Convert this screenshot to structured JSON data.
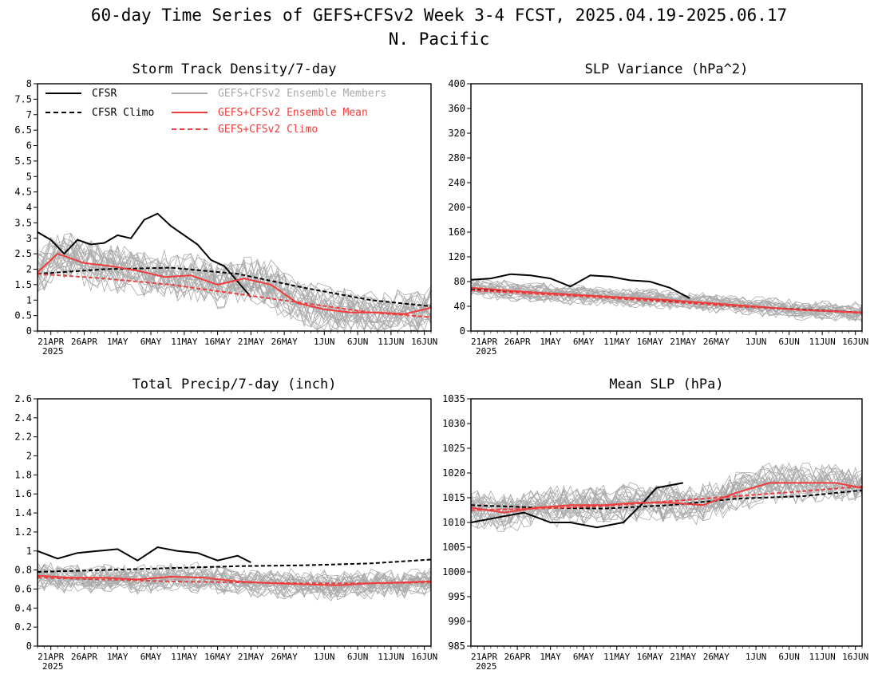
{
  "figure": {
    "title_line1": "60-day Time Series of GEFS+CFSv2 Week 3-4 FCST, 2025.04.19-2025.06.17",
    "title_line2": "N. Pacific"
  },
  "x_axis": {
    "tick_labels": [
      "21APR",
      "26APR",
      "1MAY",
      "6MAY",
      "11MAY",
      "16MAY",
      "21MAY",
      "26MAY",
      "1JUN",
      "6JUN",
      "11JUN",
      "16JUN"
    ],
    "tick_dates": [
      "2025-04-21",
      "2025-04-26",
      "2025-05-01",
      "2025-05-06",
      "2025-05-11",
      "2025-05-16",
      "2025-05-21",
      "2025-05-26",
      "2025-06-01",
      "2025-06-06",
      "2025-06-11",
      "2025-06-16"
    ],
    "year_label": "2025",
    "start_date": "2025-04-19",
    "end_date": "2025-06-17"
  },
  "legend": {
    "cfsr": "CFSR",
    "cfsr_climo": "CFSR Climo",
    "members": "GEFS+CFSv2 Ensemble Members",
    "mean": "GEFS+CFSv2 Ensemble Mean",
    "climo": "GEFS+CFSv2 Climo"
  },
  "colors": {
    "cfsr": "#000000",
    "members": "#a9a9a9",
    "mean": "#f03c3c",
    "climo": "#f03c3c"
  },
  "chart_data": [
    {
      "type": "line",
      "title": "Storm Track Density/7-day",
      "ylim": [
        0,
        8
      ],
      "yticks": [
        "0",
        "0.5",
        "1",
        "1.5",
        "2",
        "2.5",
        "3",
        "3.5",
        "4",
        "4.5",
        "5",
        "5.5",
        "6",
        "6.5",
        "7",
        "7.5",
        "8"
      ],
      "series": [
        {
          "name": "CFSR",
          "style": "solid",
          "x": [
            "2025-04-19",
            "2025-04-21",
            "2025-04-23",
            "2025-04-25",
            "2025-04-27",
            "2025-04-29",
            "2025-05-01",
            "2025-05-03",
            "2025-05-05",
            "2025-05-07",
            "2025-05-09",
            "2025-05-11",
            "2025-05-13",
            "2025-05-15",
            "2025-05-17",
            "2025-05-19",
            "2025-05-21"
          ],
          "values": [
            3.2,
            2.95,
            2.5,
            2.95,
            2.8,
            2.85,
            3.1,
            3.0,
            3.6,
            3.8,
            3.4,
            3.1,
            2.8,
            2.3,
            2.1,
            1.6,
            1.1
          ]
        },
        {
          "name": "CFSR Climo",
          "style": "dashed",
          "x": [
            "2025-04-19",
            "2025-04-29",
            "2025-05-09",
            "2025-05-19",
            "2025-05-29",
            "2025-06-08",
            "2025-06-17"
          ],
          "values": [
            1.85,
            2.0,
            2.05,
            1.85,
            1.4,
            1.0,
            0.8
          ]
        },
        {
          "name": "GEFS+CFSv2 Ensemble Mean",
          "style": "solid",
          "x": [
            "2025-04-19",
            "2025-04-22",
            "2025-04-26",
            "2025-04-30",
            "2025-05-04",
            "2025-05-08",
            "2025-05-12",
            "2025-05-16",
            "2025-05-20",
            "2025-05-24",
            "2025-05-28",
            "2025-06-01",
            "2025-06-05",
            "2025-06-09",
            "2025-06-13",
            "2025-06-17"
          ],
          "values": [
            1.9,
            2.5,
            2.2,
            2.1,
            1.95,
            1.75,
            1.8,
            1.5,
            1.7,
            1.5,
            0.9,
            0.7,
            0.6,
            0.6,
            0.55,
            0.75
          ]
        },
        {
          "name": "GEFS+CFSv2 Climo",
          "style": "dashed",
          "x": [
            "2025-04-19",
            "2025-04-29",
            "2025-05-09",
            "2025-05-19",
            "2025-05-29",
            "2025-06-08",
            "2025-06-17"
          ],
          "values": [
            1.85,
            1.7,
            1.5,
            1.2,
            0.9,
            0.6,
            0.45
          ]
        }
      ]
    },
    {
      "type": "line",
      "title": "SLP Variance (hPa^2)",
      "ylim": [
        0,
        400
      ],
      "yticks": [
        "0",
        "40",
        "80",
        "120",
        "160",
        "200",
        "240",
        "280",
        "320",
        "360",
        "400"
      ],
      "series": [
        {
          "name": "CFSR",
          "style": "solid",
          "x": [
            "2025-04-19",
            "2025-04-22",
            "2025-04-25",
            "2025-04-28",
            "2025-05-01",
            "2025-05-04",
            "2025-05-07",
            "2025-05-10",
            "2025-05-13",
            "2025-05-16",
            "2025-05-19",
            "2025-05-22"
          ],
          "values": [
            83,
            85,
            92,
            90,
            85,
            72,
            90,
            88,
            82,
            80,
            70,
            53
          ]
        },
        {
          "name": "CFSR Climo",
          "style": "dashed",
          "x": [
            "2025-04-19",
            "2025-04-29",
            "2025-05-09",
            "2025-05-19",
            "2025-05-29",
            "2025-06-08",
            "2025-06-17"
          ],
          "values": [
            68,
            62,
            56,
            48,
            40,
            35,
            30
          ]
        },
        {
          "name": "GEFS+CFSv2 Ensemble Mean",
          "style": "solid",
          "x": [
            "2025-04-19",
            "2025-04-24",
            "2025-04-29",
            "2025-05-04",
            "2025-05-09",
            "2025-05-14",
            "2025-05-19",
            "2025-05-24",
            "2025-05-29",
            "2025-06-03",
            "2025-06-08",
            "2025-06-13",
            "2025-06-17"
          ],
          "values": [
            70,
            66,
            62,
            59,
            56,
            53,
            50,
            46,
            42,
            38,
            34,
            32,
            30
          ]
        },
        {
          "name": "GEFS+CFSv2 Climo",
          "style": "dashed",
          "x": [
            "2025-04-19",
            "2025-04-29",
            "2025-05-09",
            "2025-05-19",
            "2025-05-29",
            "2025-06-08",
            "2025-06-17"
          ],
          "values": [
            66,
            60,
            54,
            47,
            40,
            34,
            29
          ]
        }
      ]
    },
    {
      "type": "line",
      "title": "Total Precip/7-day (inch)",
      "ylim": [
        0,
        2.6
      ],
      "yticks": [
        "0",
        "0.2",
        "0.4",
        "0.6",
        "0.8",
        "1",
        "1.2",
        "1.4",
        "1.6",
        "1.8",
        "2",
        "2.2",
        "2.4",
        "2.6"
      ],
      "series": [
        {
          "name": "CFSR",
          "style": "solid",
          "x": [
            "2025-04-19",
            "2025-04-22",
            "2025-04-25",
            "2025-04-28",
            "2025-05-01",
            "2025-05-04",
            "2025-05-07",
            "2025-05-10",
            "2025-05-13",
            "2025-05-16",
            "2025-05-19",
            "2025-05-21"
          ],
          "values": [
            1.0,
            0.92,
            0.98,
            1.0,
            1.02,
            0.9,
            1.04,
            1.0,
            0.98,
            0.9,
            0.95,
            0.88
          ]
        },
        {
          "name": "CFSR Climo",
          "style": "dashed",
          "x": [
            "2025-04-19",
            "2025-04-29",
            "2025-05-09",
            "2025-05-19",
            "2025-05-29",
            "2025-06-08",
            "2025-06-17"
          ],
          "values": [
            0.78,
            0.8,
            0.82,
            0.84,
            0.85,
            0.87,
            0.91
          ]
        },
        {
          "name": "GEFS+CFSv2 Ensemble Mean",
          "style": "solid",
          "x": [
            "2025-04-19",
            "2025-04-24",
            "2025-04-29",
            "2025-05-04",
            "2025-05-09",
            "2025-05-14",
            "2025-05-19",
            "2025-05-24",
            "2025-05-29",
            "2025-06-03",
            "2025-06-08",
            "2025-06-13",
            "2025-06-17"
          ],
          "values": [
            0.74,
            0.72,
            0.72,
            0.7,
            0.73,
            0.72,
            0.68,
            0.66,
            0.65,
            0.64,
            0.66,
            0.67,
            0.68
          ]
        },
        {
          "name": "GEFS+CFSv2 Climo",
          "style": "dashed",
          "x": [
            "2025-04-19",
            "2025-04-29",
            "2025-05-09",
            "2025-05-19",
            "2025-05-29",
            "2025-06-08",
            "2025-06-17"
          ],
          "values": [
            0.72,
            0.7,
            0.68,
            0.67,
            0.66,
            0.66,
            0.67
          ]
        }
      ]
    },
    {
      "type": "line",
      "title": "Mean SLP (hPa)",
      "ylim": [
        985,
        1035
      ],
      "yticks": [
        "985",
        "990",
        "995",
        "1000",
        "1005",
        "1010",
        "1015",
        "1020",
        "1025",
        "1030",
        "1035"
      ],
      "series": [
        {
          "name": "CFSR",
          "style": "solid",
          "x": [
            "2025-04-19",
            "2025-04-23",
            "2025-04-27",
            "2025-05-01",
            "2025-05-04",
            "2025-05-08",
            "2025-05-12",
            "2025-05-15",
            "2025-05-17",
            "2025-05-19",
            "2025-05-21"
          ],
          "values": [
            1010,
            1011,
            1012,
            1010,
            1010,
            1009,
            1010,
            1014,
            1017,
            1017.5,
            1018
          ]
        },
        {
          "name": "CFSR Climo",
          "style": "dashed",
          "x": [
            "2025-04-19",
            "2025-04-29",
            "2025-05-09",
            "2025-05-19",
            "2025-05-29",
            "2025-06-08",
            "2025-06-17"
          ],
          "values": [
            1013.5,
            1013,
            1012.8,
            1013.5,
            1014.8,
            1015.3,
            1016.5
          ]
        },
        {
          "name": "GEFS+CFSv2 Ensemble Mean",
          "style": "solid",
          "x": [
            "2025-04-19",
            "2025-04-24",
            "2025-04-29",
            "2025-05-04",
            "2025-05-09",
            "2025-05-14",
            "2025-05-19",
            "2025-05-24",
            "2025-05-29",
            "2025-06-03",
            "2025-06-08",
            "2025-06-13",
            "2025-06-17"
          ],
          "values": [
            1013,
            1012,
            1013,
            1013.5,
            1013.5,
            1014,
            1014,
            1013.5,
            1016,
            1018,
            1018,
            1018,
            1017
          ]
        },
        {
          "name": "GEFS+CFSv2 Climo",
          "style": "dashed",
          "x": [
            "2025-04-19",
            "2025-04-29",
            "2025-05-09",
            "2025-05-19",
            "2025-05-29",
            "2025-06-08",
            "2025-06-17"
          ],
          "values": [
            1012.5,
            1012.8,
            1013.3,
            1014.3,
            1015.3,
            1016.3,
            1017.3
          ]
        }
      ]
    }
  ]
}
